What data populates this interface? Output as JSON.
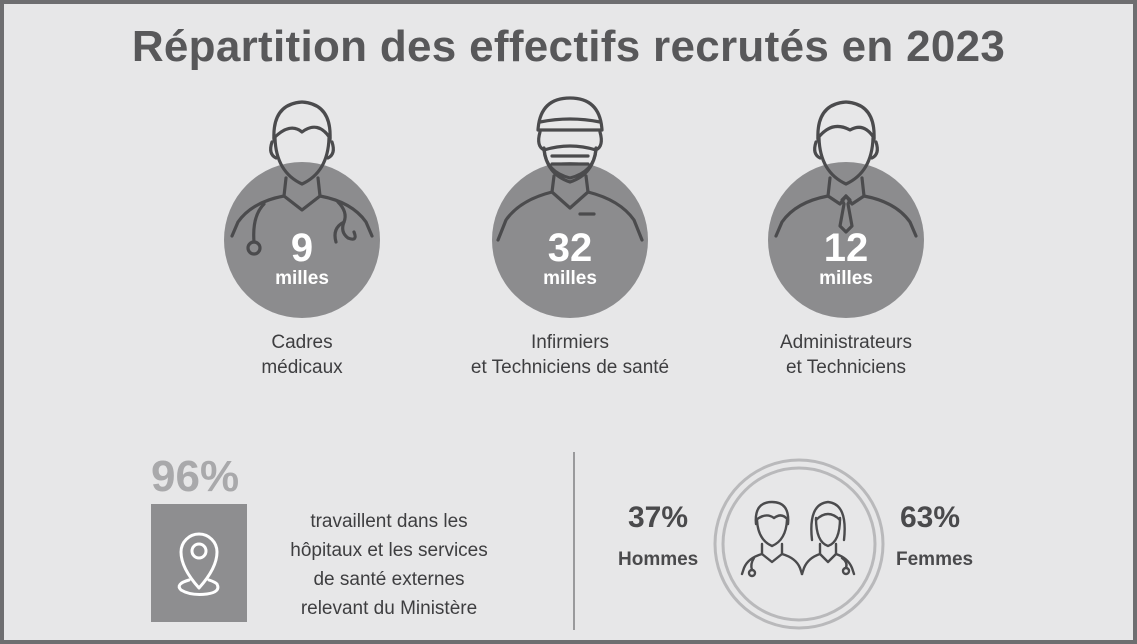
{
  "title": "Répartition des effectifs recrutés en 2023",
  "categories": [
    {
      "value": "9",
      "unit": "milles",
      "label_line1": "Cadres",
      "label_line2": "médicaux",
      "icon": "doctor-icon"
    },
    {
      "value": "32",
      "unit": "milles",
      "label_line1": "Infirmiers",
      "label_line2": "et Techniciens de santé",
      "icon": "nurse-icon"
    },
    {
      "value": "12",
      "unit": "milles",
      "label_line1": "Administrateurs",
      "label_line2": "et Techniciens",
      "icon": "administrator-icon"
    }
  ],
  "location": {
    "percent": "96%",
    "text_lines": [
      "travaillent dans les",
      "hôpitaux et les services",
      "de santé externes",
      "relevant du Ministère"
    ],
    "icon": "location-pin-icon"
  },
  "gender": {
    "men": {
      "percent": "37%",
      "label": "Hommes",
      "share": 0.37
    },
    "women": {
      "percent": "63%",
      "label": "Femmes",
      "share": 0.63
    },
    "icon": "male-female-doctors-icon"
  },
  "colors": {
    "background": "#e7e7e8",
    "circle": "#8c8c8e",
    "title": "#58585a",
    "accent_light": "#a9a9ab"
  }
}
